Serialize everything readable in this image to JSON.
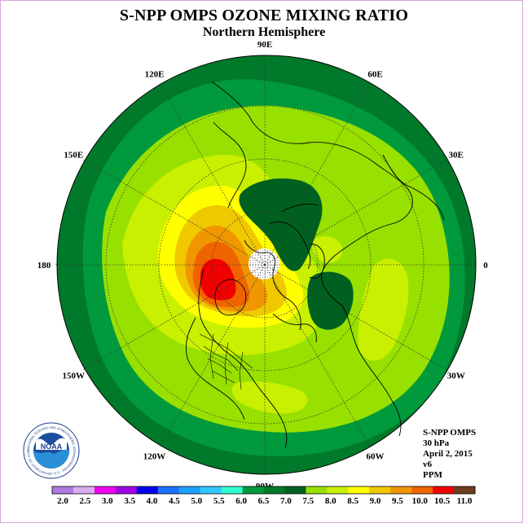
{
  "title": "S-NPP OMPS OZONE MIXING RATIO",
  "subtitle": "Northern Hemisphere",
  "info": {
    "instrument": "S-NPP OMPS",
    "level": "30 hPa",
    "date": "April 2, 2015",
    "version": "v6",
    "units": "PPM"
  },
  "longitude_labels": [
    "90E",
    "60E",
    "30E",
    "0",
    "30W",
    "60W",
    "90W",
    "120W",
    "150W",
    "180",
    "150E",
    "120E"
  ],
  "colorbar": {
    "ticks": [
      "2.0",
      "2.5",
      "3.0",
      "3.5",
      "4.0",
      "4.5",
      "5.0",
      "5.5",
      "6.0",
      "6.5",
      "7.0",
      "7.5",
      "8.0",
      "8.5",
      "9.0",
      "9.5",
      "10.0",
      "10.5",
      "11.0"
    ],
    "colors": [
      "#b07be0",
      "#d8aef0",
      "#ee00ee",
      "#a000e6",
      "#0000ee",
      "#1e72ff",
      "#1ea0ff",
      "#32c8ff",
      "#32ffd0",
      "#009a3c",
      "#007a2a",
      "#006020",
      "#98e000",
      "#c8f000",
      "#ffff00",
      "#f0c800",
      "#f09600",
      "#f06400",
      "#f00000",
      "#6e3c1e"
    ]
  },
  "logo": {
    "name": "NOAA",
    "ring_text": "NATIONAL OCEANIC AND ATMOSPHERIC ADMINISTRATION · U.S. DEPARTMENT OF COMMERCE"
  }
}
